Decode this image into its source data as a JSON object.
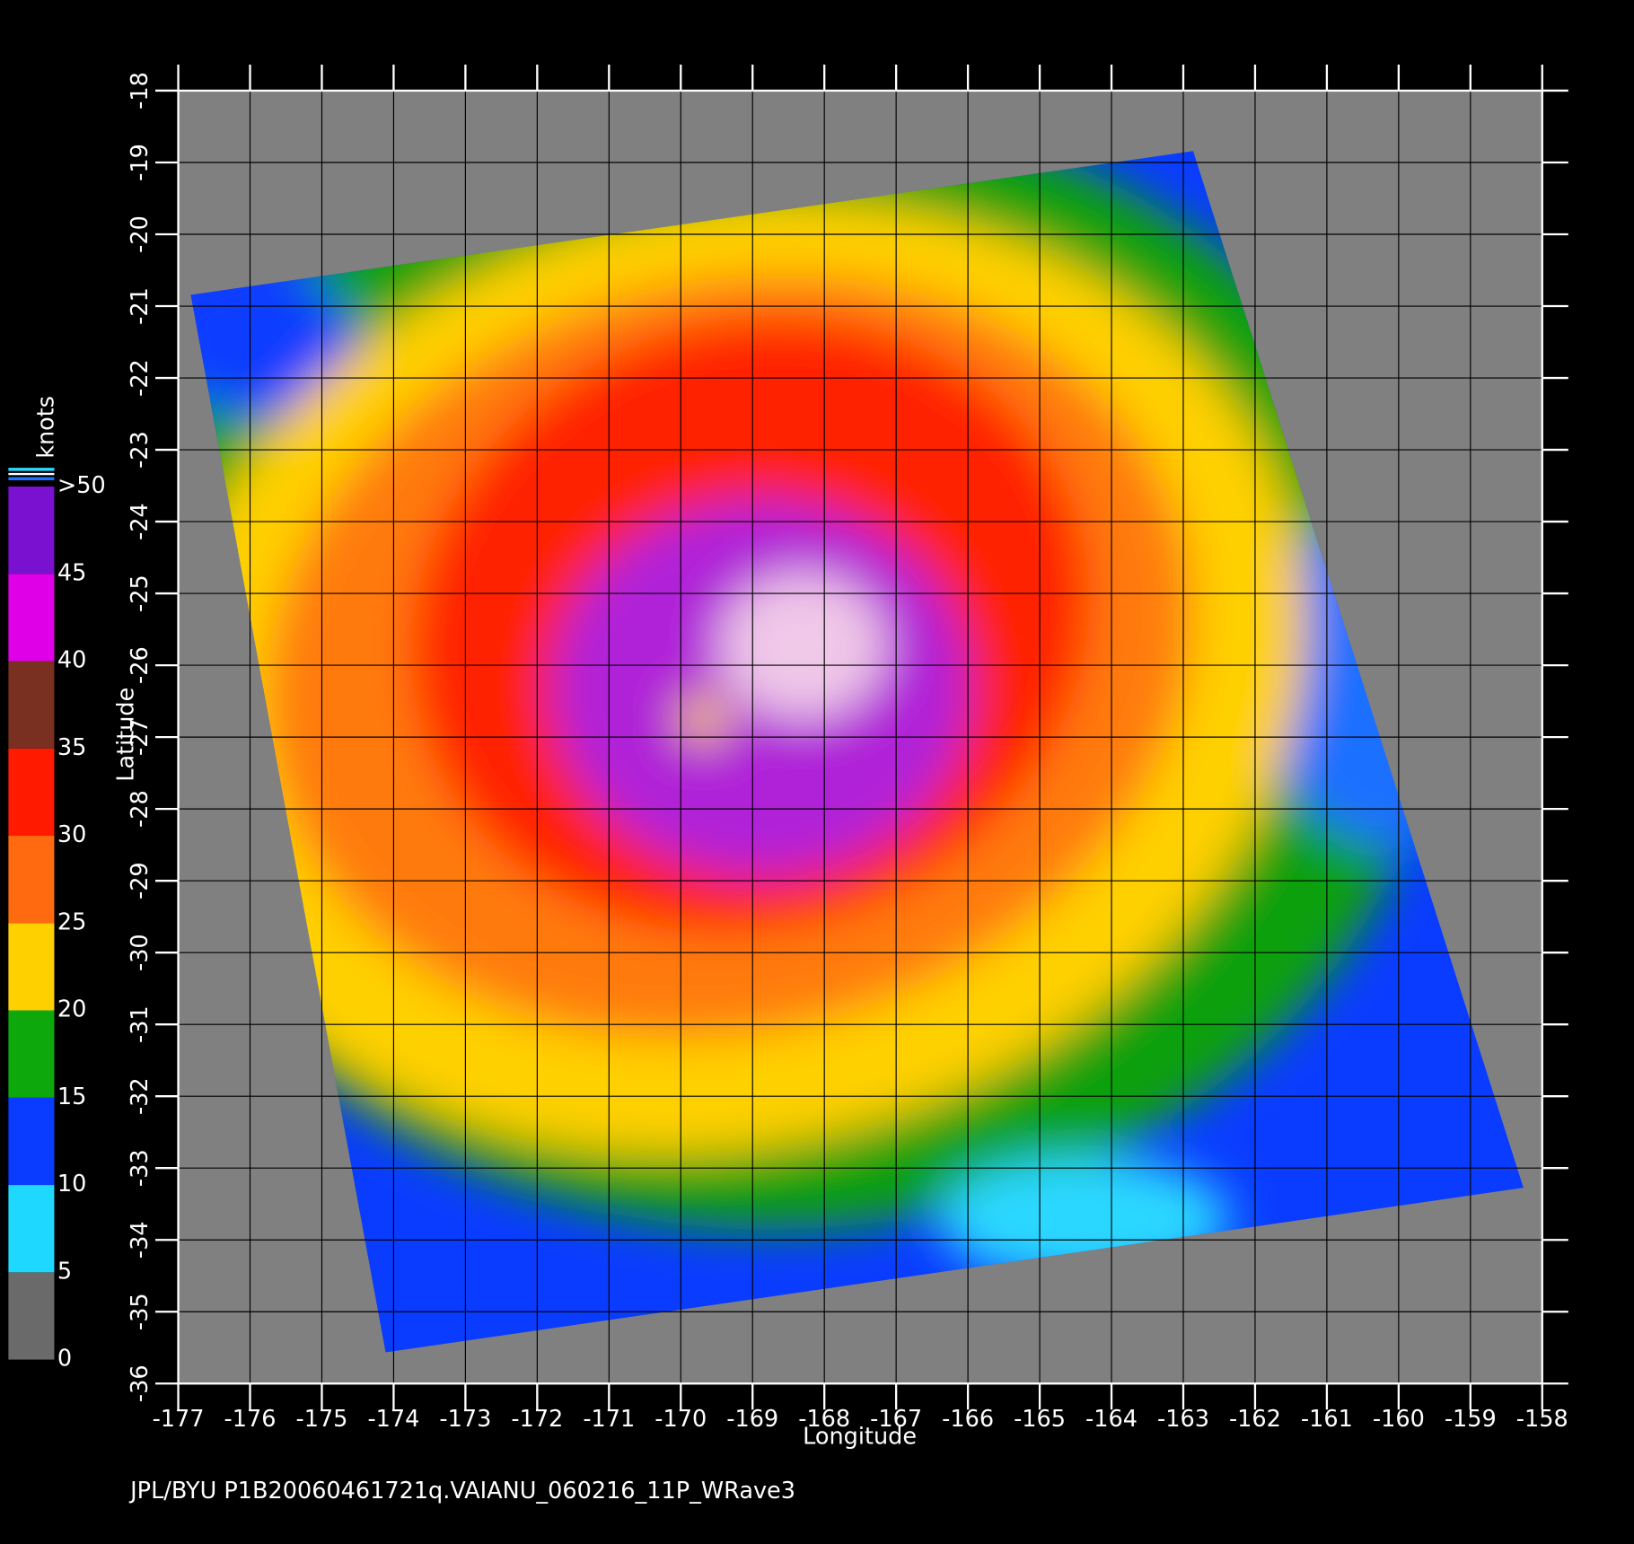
{
  "chart_data": {
    "type": "map",
    "xlabel": "Longitude",
    "ylabel": "Latitude",
    "footer": "JPL/BYU  P1B20060461721q.VAIANU_060216_11P_WRave3",
    "xlim": [
      -177,
      -158
    ],
    "xticks": [
      -177,
      -176,
      -175,
      -174,
      -173,
      -172,
      -171,
      -170,
      -169,
      -168,
      -167,
      -166,
      -165,
      -164,
      -163,
      -162,
      -161,
      -160,
      -159,
      -158
    ],
    "ylim": [
      -36,
      -18
    ],
    "yticks": [
      -36,
      -35,
      -34,
      -33,
      -32,
      -31,
      -30,
      -29,
      -28,
      -27,
      -26,
      -25,
      -24,
      -23,
      -22,
      -21,
      -20,
      -19,
      -18
    ],
    "grid": true,
    "colorbar": {
      "label": "knots",
      "bins": [
        0,
        5,
        10,
        15,
        20,
        25,
        30,
        35,
        40,
        45,
        50
      ],
      "colors": [
        "#6a6a6a",
        "#1ed8ff",
        "#0a3cff",
        "#0ca80c",
        "#ffd000",
        "#ff6a10",
        "#ff1a00",
        "#7a3020",
        "#e000e8",
        "#7a10d0"
      ],
      "ticks": [
        0,
        5,
        10,
        15,
        20,
        25,
        30,
        35,
        40,
        45,
        {
          "value": 50,
          "label": ">50"
        }
      ]
    }
  }
}
